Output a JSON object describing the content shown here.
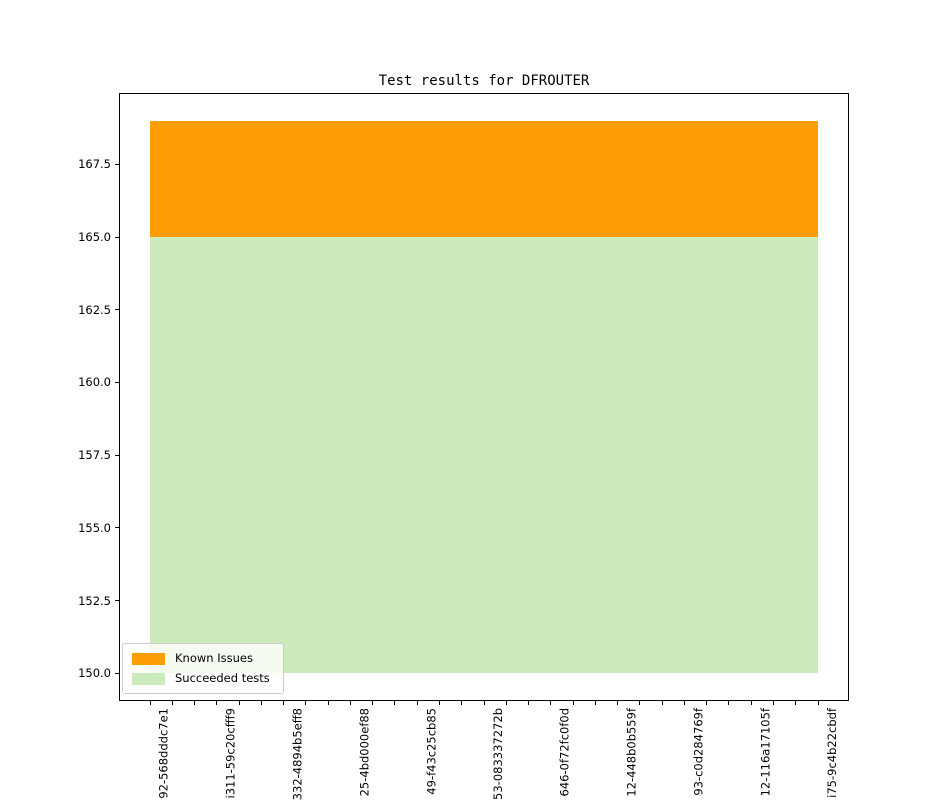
{
  "chart_data": {
    "type": "area",
    "stacked": true,
    "title": "Test results for DFROUTER",
    "xlabel": "",
    "ylabel": "",
    "grid": false,
    "ylim": [
      149.05,
      169.95
    ],
    "y_ticks": [
      150.0,
      152.5,
      155.0,
      157.5,
      160.0,
      162.5,
      165.0,
      167.5
    ],
    "y_tick_labels": [
      "150.0",
      "152.5",
      "155.0",
      "157.5",
      "160.0",
      "162.5",
      "165.0",
      "167.5"
    ],
    "x_points": 31,
    "x_tick_label_every": 3,
    "x_tick_labels": [
      "92-568dddc7e1",
      "i311-59c20cfff9",
      "332-4894b5eff8",
      "25-4bd000ef88",
      "49-f43c25cb85",
      "53-083337272b",
      "646-0f72fc0f0d",
      "12-448b0b559f",
      "93-c0d284769f",
      "12-116a17105f",
      "i75-9c4b22cbdf"
    ],
    "baseline": 150,
    "series": [
      {
        "name": "Succeeded tests",
        "color": "#cbecba",
        "band": {
          "from": 150,
          "to": 165
        },
        "values": [
          165,
          165,
          165,
          165,
          165,
          165,
          165,
          165,
          165,
          165,
          165,
          165,
          165,
          165,
          165,
          165,
          165,
          165,
          165,
          165,
          165,
          165,
          165,
          165,
          165,
          165,
          165,
          165,
          165,
          165,
          165
        ]
      },
      {
        "name": "Known Issues",
        "color": "#fc9e03",
        "band": {
          "from": 165,
          "to": 169
        },
        "values": [
          4,
          4,
          4,
          4,
          4,
          4,
          4,
          4,
          4,
          4,
          4,
          4,
          4,
          4,
          4,
          4,
          4,
          4,
          4,
          4,
          4,
          4,
          4,
          4,
          4,
          4,
          4,
          4,
          4,
          4,
          4
        ]
      }
    ],
    "legend": {
      "position": "lower-left",
      "items": [
        {
          "label": "Known Issues",
          "color": "#fc9e03"
        },
        {
          "label": "Succeeded tests",
          "color": "#cbecba"
        }
      ]
    }
  }
}
